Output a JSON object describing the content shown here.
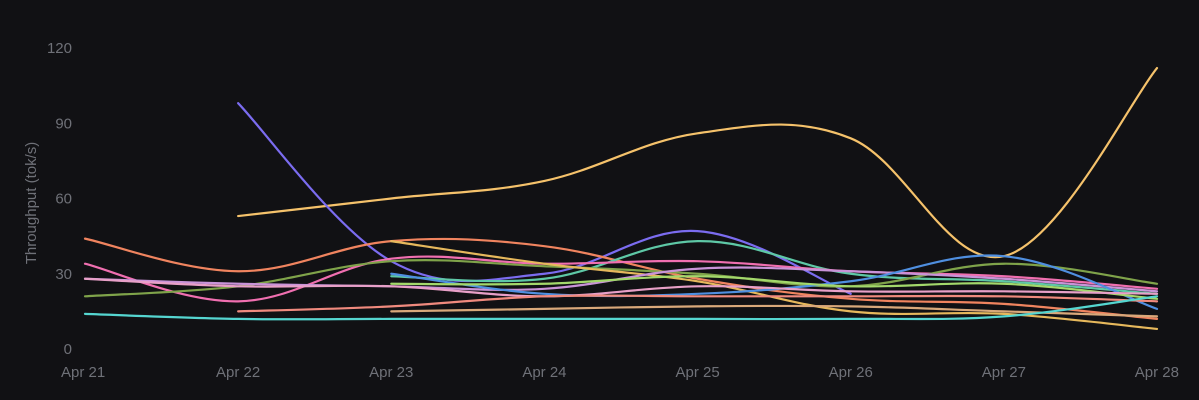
{
  "chart_data": {
    "type": "line",
    "ylabel": "Throughput (tok/s)",
    "x": [
      "Apr 21",
      "Apr 22",
      "Apr 23",
      "Apr 24",
      "Apr 25",
      "Apr 26",
      "Apr 27",
      "Apr 28"
    ],
    "y_ticks": [
      "0",
      "30",
      "60",
      "90",
      "120"
    ],
    "ylim": [
      0,
      120
    ],
    "grid": false,
    "legend": "none",
    "series": [
      {
        "color": "#f5c26b",
        "values": [
          null,
          53,
          60,
          67,
          86,
          84,
          37,
          112
        ]
      },
      {
        "color": "#7b6cf0",
        "values": [
          null,
          98,
          35,
          30,
          47,
          22,
          null,
          null
        ]
      },
      {
        "color": "#f0845f",
        "values": [
          44,
          31,
          43,
          41,
          28,
          20,
          18,
          12
        ]
      },
      {
        "color": "#5ec8a6",
        "values": [
          null,
          null,
          29,
          28,
          43,
          30,
          27,
          22
        ]
      },
      {
        "color": "#f06fb0",
        "values": [
          34,
          19,
          36,
          34,
          35,
          31,
          29,
          24
        ]
      },
      {
        "color": "#7fa34a",
        "values": [
          21,
          25,
          35,
          33,
          30,
          25,
          34,
          26
        ]
      },
      {
        "color": "#e6b85c",
        "values": [
          null,
          null,
          43,
          34,
          27,
          15,
          14,
          8
        ]
      },
      {
        "color": "#c993d8",
        "values": [
          28,
          26,
          25,
          24,
          32,
          31,
          28,
          23
        ]
      },
      {
        "color": "#4f8fe0",
        "values": [
          null,
          null,
          30,
          22,
          22,
          27,
          37,
          16
        ]
      },
      {
        "color": "#a3d86b",
        "values": [
          null,
          null,
          26,
          26,
          29,
          25,
          26,
          20
        ]
      },
      {
        "color": "#e8a0c8",
        "values": [
          28,
          25,
          25,
          21,
          25,
          23,
          23,
          22
        ]
      },
      {
        "color": "#f08a7e",
        "values": [
          null,
          15,
          17,
          21,
          21,
          21,
          21,
          19
        ]
      },
      {
        "color": "#d9a87a",
        "values": [
          null,
          null,
          15,
          16,
          17,
          17,
          15,
          13
        ]
      },
      {
        "color": "#55d6d0",
        "values": [
          14,
          12,
          12,
          12,
          12,
          12,
          13,
          21
        ]
      }
    ]
  }
}
